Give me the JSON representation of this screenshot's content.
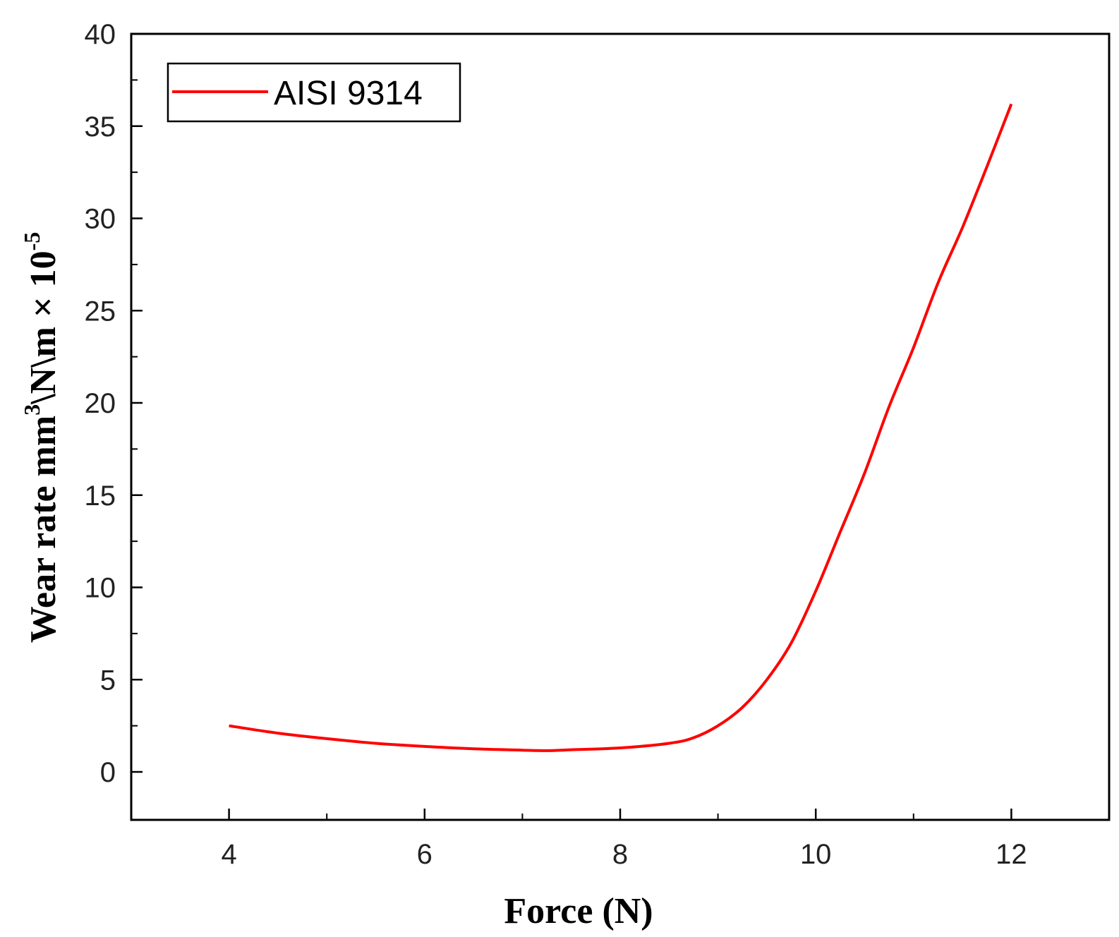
{
  "chart_data": {
    "type": "line",
    "title": "",
    "xlabel": "Force (N)",
    "ylabel": {
      "prefix": "Wear rate mm",
      "sup1": "3",
      "middle": "\\N\\m × 10",
      "sup2": "-5"
    },
    "xlim": [
      3,
      13
    ],
    "ylim": [
      -2.6,
      40
    ],
    "x_ticks": [
      4,
      6,
      8,
      10,
      12
    ],
    "x_minor_ticks": [
      5,
      7,
      9,
      11
    ],
    "y_ticks": [
      0,
      5,
      10,
      15,
      20,
      25,
      30,
      35,
      40
    ],
    "y_minor_ticks": [
      2.5,
      7.5,
      12.5,
      17.5,
      22.5,
      27.5,
      32.5,
      37.5
    ],
    "grid": false,
    "legend_position": "top-left",
    "series": [
      {
        "name": "AISI 9314",
        "color": "#ff0000",
        "x": [
          4.0,
          4.5,
          5.0,
          5.5,
          6.0,
          6.5,
          7.0,
          7.25,
          7.5,
          8.0,
          8.5,
          8.75,
          9.0,
          9.25,
          9.5,
          9.75,
          10.0,
          10.25,
          10.5,
          10.75,
          11.0,
          11.25,
          11.5,
          11.75,
          12.0
        ],
        "y": [
          2.5,
          2.1,
          1.8,
          1.55,
          1.38,
          1.25,
          1.18,
          1.15,
          1.2,
          1.3,
          1.55,
          1.85,
          2.5,
          3.5,
          5.0,
          7.0,
          9.8,
          13.0,
          16.2,
          19.8,
          23.0,
          26.5,
          29.5,
          32.8,
          36.2
        ]
      }
    ]
  }
}
